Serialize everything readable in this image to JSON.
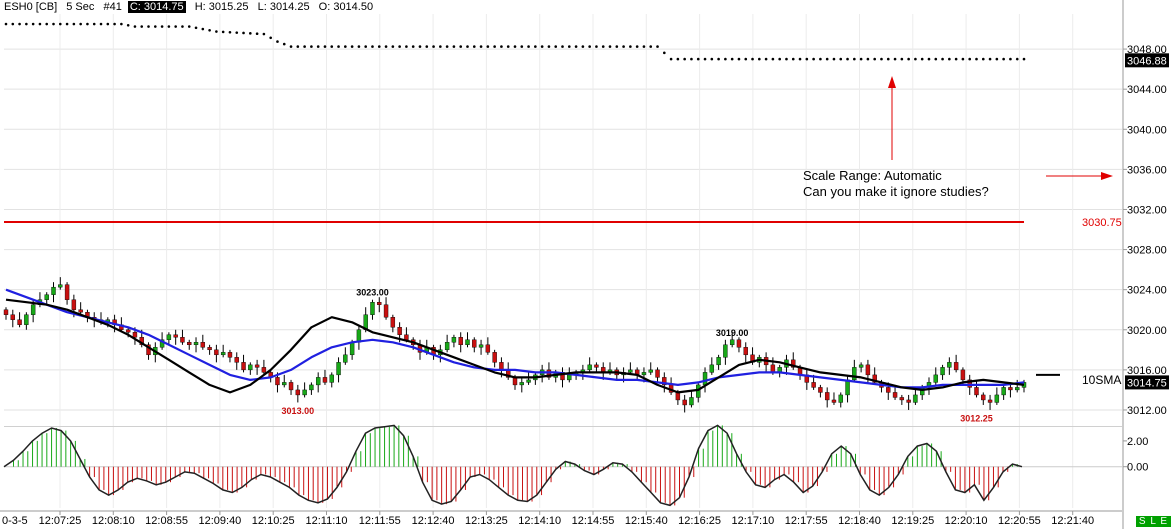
{
  "header": {
    "symbol": "ESH0 [CB]",
    "interval": "5 Sec",
    "bar_number": "#41",
    "close": "C: 3014.75",
    "high": "H: 3015.25",
    "low": "L: 3014.25",
    "open": "O: 3014.50"
  },
  "annotation": {
    "line1": "Scale Range: Automatic",
    "line2": "Can you make it ignore studies?"
  },
  "status_badge": "S L E",
  "colors": {
    "up_candle": "#18a818",
    "down_candle": "#c81010",
    "sma_fast": "#000000",
    "sma_slow": "#2020e0",
    "hline": "#e00000",
    "osc_pos": "#18a818",
    "osc_neg": "#c81010",
    "dotted_study": "#000000"
  },
  "chart_data": [
    {
      "type": "candlestick",
      "ylim": [
        3010.5,
        3051.5
      ],
      "y_ticks": [
        "3048.00",
        "3044.00",
        "3040.00",
        "3036.00",
        "3032.00",
        "3028.00",
        "3024.00",
        "3020.00",
        "3016.00",
        "3012.00"
      ],
      "x_ticks": [
        "12:07:25",
        "12:08:10",
        "12:08:55",
        "12:09:40",
        "12:10:25",
        "12:11:10",
        "12:11:55",
        "12:12:40",
        "12:13:25",
        "12:14:10",
        "12:14:55",
        "12:15:40",
        "12:16:25",
        "12:17:10",
        "12:17:55",
        "12:18:40",
        "12:19:25",
        "12:20:10",
        "12:20:55",
        "12:21:40"
      ],
      "x_start_label": "0-3-5",
      "price_labels": [
        {
          "label": "3046.88",
          "value": 3046.88,
          "style": "boxed"
        },
        {
          "label": "3014.75",
          "value": 3014.75,
          "style": "boxed"
        },
        {
          "label": "3030.75",
          "value": 3030.75,
          "style": "red"
        }
      ],
      "study_label": "10SMA",
      "horizontal_line": {
        "value": 3030.75
      },
      "data_labels": [
        {
          "text": "3023.00",
          "index": 54,
          "value": 3023.0,
          "position": "above"
        },
        {
          "text": "3013.00",
          "index": 43,
          "value": 3013.0,
          "position": "below"
        },
        {
          "text": "3019.00",
          "index": 107,
          "value": 3019.0,
          "position": "above"
        },
        {
          "text": "3012.25",
          "index": 143,
          "value": 3012.25,
          "position": "below"
        }
      ],
      "dotted_study": [
        [
          0,
          3050.5
        ],
        [
          17,
          3050.5
        ],
        [
          19,
          3050.25
        ],
        [
          27,
          3050.25
        ],
        [
          31,
          3049.75
        ],
        [
          38,
          3049.5
        ],
        [
          40,
          3048.75
        ],
        [
          42,
          3048.25
        ],
        [
          96,
          3048.25
        ],
        [
          98,
          3047.0
        ],
        [
          150,
          3047.0
        ]
      ],
      "candles": {
        "start": 3022.0,
        "closes": [
          3021.5,
          3021.0,
          3020.5,
          3021.5,
          3022.5,
          3023.0,
          3023.5,
          3024.25,
          3024.5,
          3023.0,
          3022.0,
          3021.75,
          3021.25,
          3021.0,
          3020.75,
          3021.0,
          3020.5,
          3020.0,
          3019.75,
          3019.25,
          3018.5,
          3017.5,
          3018.25,
          3019.0,
          3019.5,
          3019.25,
          3018.75,
          3018.5,
          3018.75,
          3018.25,
          3018.0,
          3017.5,
          3017.75,
          3017.25,
          3016.75,
          3016.0,
          3016.5,
          3016.25,
          3015.75,
          3015.25,
          3014.5,
          3014.75,
          3014.0,
          3013.5,
          3014.0,
          3014.5,
          3015.25,
          3014.75,
          3015.5,
          3016.75,
          3017.5,
          3018.75,
          3020.0,
          3021.5,
          3022.75,
          3022.5,
          3021.25,
          3020.25,
          3019.5,
          3019.0,
          3018.5,
          3017.75,
          3018.25,
          3017.5,
          3018.0,
          3018.75,
          3019.25,
          3018.5,
          3019.0,
          3018.25,
          3018.5,
          3017.75,
          3016.75,
          3016.0,
          3015.25,
          3014.5,
          3014.75,
          3015.0,
          3015.5,
          3016.0,
          3015.25,
          3015.75,
          3015.0,
          3015.5,
          3015.75,
          3016.0,
          3016.5,
          3016.25,
          3015.75,
          3016.0,
          3015.5,
          3015.75,
          3016.0,
          3015.5,
          3015.75,
          3016.0,
          3015.25,
          3014.5,
          3013.75,
          3013.0,
          3012.5,
          3013.25,
          3014.5,
          3015.75,
          3016.5,
          3017.25,
          3018.5,
          3019.0,
          3018.25,
          3017.5,
          3016.75,
          3017.25,
          3016.5,
          3015.75,
          3016.25,
          3017.0,
          3016.25,
          3015.5,
          3014.75,
          3014.25,
          3013.75,
          3013.0,
          3012.75,
          3013.5,
          3015.0,
          3016.25,
          3016.5,
          3015.5,
          3014.75,
          3014.25,
          3013.75,
          3013.25,
          3013.0,
          3012.75,
          3013.5,
          3014.25,
          3014.75,
          3015.5,
          3016.25,
          3016.75,
          3016.0,
          3015.0,
          3014.25,
          3013.5,
          3013.0,
          3012.75,
          3013.5,
          3014.25,
          3014.0,
          3014.25,
          3014.75
        ]
      },
      "sma_fast_values": [
        3023.0,
        3022.75,
        3022.5,
        3022.0,
        3021.25,
        3020.5,
        3019.5,
        3018.25,
        3017.0,
        3015.75,
        3014.5,
        3013.75,
        3014.5,
        3016.0,
        3018.0,
        3020.25,
        3021.25,
        3020.75,
        3019.75,
        3019.25,
        3018.75,
        3018.0,
        3017.25,
        3016.5,
        3015.75,
        3015.25,
        3015.25,
        3015.5,
        3015.75,
        3015.75,
        3015.75,
        3015.5,
        3014.5,
        3013.75,
        3014.0,
        3015.25,
        3016.5,
        3017.0,
        3016.75,
        3016.25,
        3015.75,
        3015.5,
        3015.25,
        3014.75,
        3014.25,
        3014.0,
        3014.25,
        3014.75,
        3015.0,
        3014.75,
        3014.5
      ],
      "sma_slow_values": [
        3024.0,
        3023.25,
        3022.5,
        3021.75,
        3021.25,
        3020.75,
        3020.25,
        3019.5,
        3018.5,
        3017.5,
        3016.5,
        3015.5,
        3015.0,
        3015.25,
        3016.0,
        3017.25,
        3018.25,
        3018.75,
        3019.0,
        3018.75,
        3018.25,
        3017.5,
        3016.75,
        3016.25,
        3016.0,
        3016.0,
        3015.75,
        3015.75,
        3015.5,
        3015.25,
        3015.0,
        3015.0,
        3014.75,
        3014.5,
        3014.75,
        3015.25,
        3015.5,
        3015.75,
        3015.75,
        3015.5,
        3015.25,
        3015.0,
        3014.75,
        3014.5,
        3014.25,
        3014.25,
        3014.5,
        3014.5,
        3014.5,
        3014.5,
        3014.75
      ]
    },
    {
      "type": "histogram",
      "ylim": [
        -3.2,
        3.0
      ],
      "y_ticks": [
        "2.00",
        "0.00"
      ],
      "values": [
        0.0,
        0.5,
        1.2,
        2.0,
        2.6,
        3.0,
        2.8,
        2.0,
        0.6,
        -0.8,
        -1.8,
        -2.2,
        -1.8,
        -1.2,
        -0.9,
        -1.1,
        -1.4,
        -1.2,
        -0.8,
        -0.4,
        -0.5,
        -0.9,
        -1.3,
        -1.8,
        -2.0,
        -1.6,
        -1.0,
        -0.6,
        -0.8,
        -1.2,
        -1.6,
        -2.2,
        -2.6,
        -2.8,
        -2.5,
        -1.6,
        -0.4,
        1.2,
        2.6,
        3.0,
        3.1,
        3.2,
        2.4,
        0.8,
        -1.2,
        -2.6,
        -2.9,
        -2.7,
        -1.8,
        -0.8,
        -0.6,
        -1.0,
        -1.6,
        -2.2,
        -2.6,
        -2.7,
        -2.2,
        -1.2,
        -0.2,
        0.4,
        0.2,
        -0.3,
        -0.6,
        -0.2,
        0.3,
        0.2,
        -0.4,
        -1.2,
        -2.0,
        -2.8,
        -3.0,
        -2.4,
        -0.8,
        1.4,
        2.8,
        3.2,
        2.6,
        1.0,
        -0.4,
        -1.4,
        -1.6,
        -1.0,
        -0.6,
        -1.2,
        -2.0,
        -1.5,
        -0.4,
        1.0,
        1.6,
        1.0,
        -0.6,
        -1.8,
        -2.2,
        -1.6,
        -0.6,
        0.8,
        1.6,
        1.8,
        1.2,
        -0.4,
        -1.8,
        -2.0,
        -1.4,
        -2.6,
        -1.6,
        -0.4,
        0.2,
        0.0
      ]
    }
  ]
}
